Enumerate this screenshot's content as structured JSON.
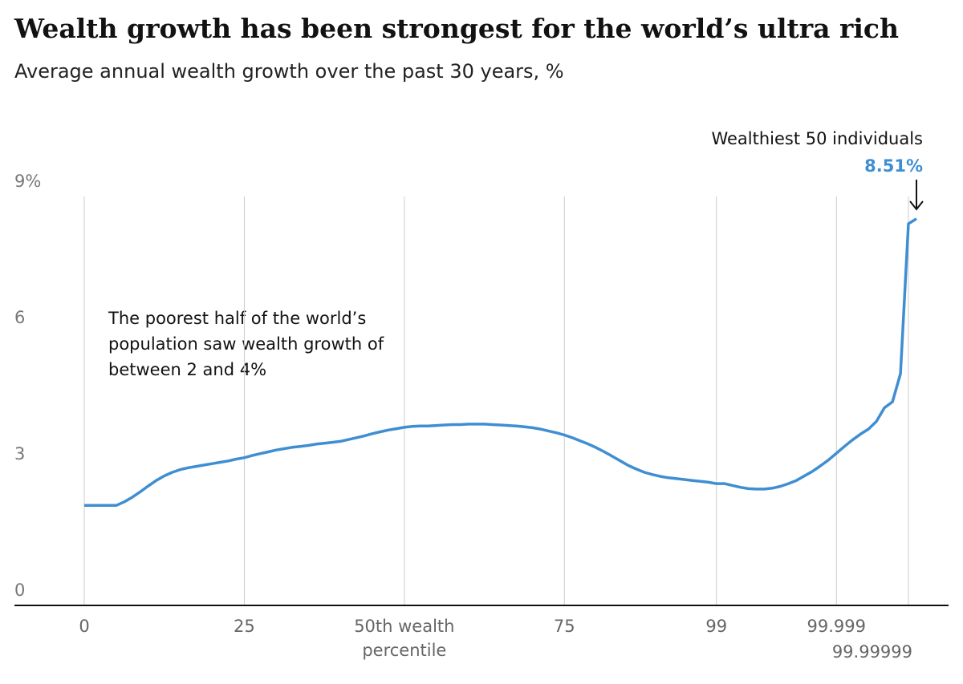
{
  "chart_data": {
    "type": "line",
    "title": "Wealth growth has been strongest for the world’s ultra rich",
    "subtitle": "Average annual wealth growth over the past 30 years, %",
    "annotations": [
      "Wealthiest 50 individuals",
      "The poorest half of the world’s population saw wealth growth of between 2 and 4%"
    ],
    "categories": [
      "0",
      null,
      null,
      null,
      null,
      null,
      null,
      null,
      null,
      null,
      null,
      null,
      null,
      null,
      null,
      null,
      null,
      null,
      null,
      null,
      "25",
      null,
      null,
      null,
      null,
      null,
      null,
      null,
      null,
      null,
      null,
      null,
      null,
      null,
      null,
      null,
      null,
      null,
      null,
      null,
      "50th wealth percentile",
      null,
      null,
      null,
      null,
      null,
      null,
      null,
      null,
      null,
      null,
      null,
      null,
      null,
      null,
      null,
      null,
      null,
      null,
      null,
      "75",
      null,
      null,
      null,
      null,
      null,
      null,
      null,
      null,
      null,
      null,
      null,
      null,
      null,
      null,
      null,
      null,
      null,
      null,
      "99",
      null,
      null,
      null,
      null,
      null,
      null,
      null,
      null,
      null,
      null,
      null,
      null,
      null,
      null,
      "99.999",
      null,
      null,
      null,
      null,
      null,
      null,
      null,
      null,
      "99.99999",
      null
    ],
    "series": [
      {
        "name": "Average annual wealth growth",
        "color": "#3f8ed2",
        "values": [
          2.2,
          2.2,
          2.2,
          2.2,
          2.2,
          2.28,
          2.38,
          2.5,
          2.63,
          2.75,
          2.85,
          2.93,
          2.99,
          3.03,
          3.06,
          3.09,
          3.12,
          3.15,
          3.18,
          3.22,
          3.25,
          3.3,
          3.34,
          3.38,
          3.42,
          3.45,
          3.48,
          3.5,
          3.52,
          3.55,
          3.57,
          3.59,
          3.61,
          3.65,
          3.69,
          3.73,
          3.78,
          3.82,
          3.86,
          3.89,
          3.92,
          3.94,
          3.95,
          3.95,
          3.96,
          3.97,
          3.98,
          3.98,
          3.99,
          3.99,
          3.99,
          3.98,
          3.97,
          3.96,
          3.95,
          3.93,
          3.91,
          3.88,
          3.84,
          3.8,
          3.75,
          3.69,
          3.62,
          3.55,
          3.47,
          3.38,
          3.28,
          3.18,
          3.08,
          3.0,
          2.93,
          2.88,
          2.84,
          2.81,
          2.79,
          2.77,
          2.75,
          2.73,
          2.71,
          2.68,
          2.68,
          2.64,
          2.6,
          2.57,
          2.56,
          2.56,
          2.58,
          2.62,
          2.68,
          2.75,
          2.85,
          2.95,
          3.07,
          3.2,
          3.35,
          3.5,
          3.64,
          3.77,
          3.88,
          4.05,
          4.35,
          4.48,
          5.1,
          8.4,
          8.51
        ],
        "value_labels": [
          null,
          null,
          null,
          null,
          null,
          null,
          null,
          null,
          null,
          null,
          null,
          null,
          null,
          null,
          null,
          null,
          null,
          null,
          null,
          null,
          null,
          null,
          null,
          null,
          null,
          null,
          null,
          null,
          null,
          null,
          null,
          null,
          null,
          null,
          null,
          null,
          null,
          null,
          null,
          null,
          null,
          null,
          null,
          null,
          null,
          null,
          null,
          null,
          null,
          null,
          null,
          null,
          null,
          null,
          null,
          null,
          null,
          null,
          null,
          null,
          null,
          null,
          null,
          null,
          null,
          null,
          null,
          null,
          null,
          null,
          null,
          null,
          null,
          null,
          null,
          null,
          null,
          null,
          null,
          null,
          null,
          null,
          null,
          null,
          null,
          null,
          null,
          null,
          null,
          null,
          null,
          null,
          null,
          null,
          null,
          null,
          null,
          null,
          null,
          null,
          null,
          null,
          null,
          null,
          "8.51%"
        ]
      }
    ],
    "ylim": [
      0,
      9
    ],
    "yticks": [
      0,
      3,
      6,
      {
        "value": 9,
        "label": "9%"
      }
    ],
    "grid": true
  }
}
